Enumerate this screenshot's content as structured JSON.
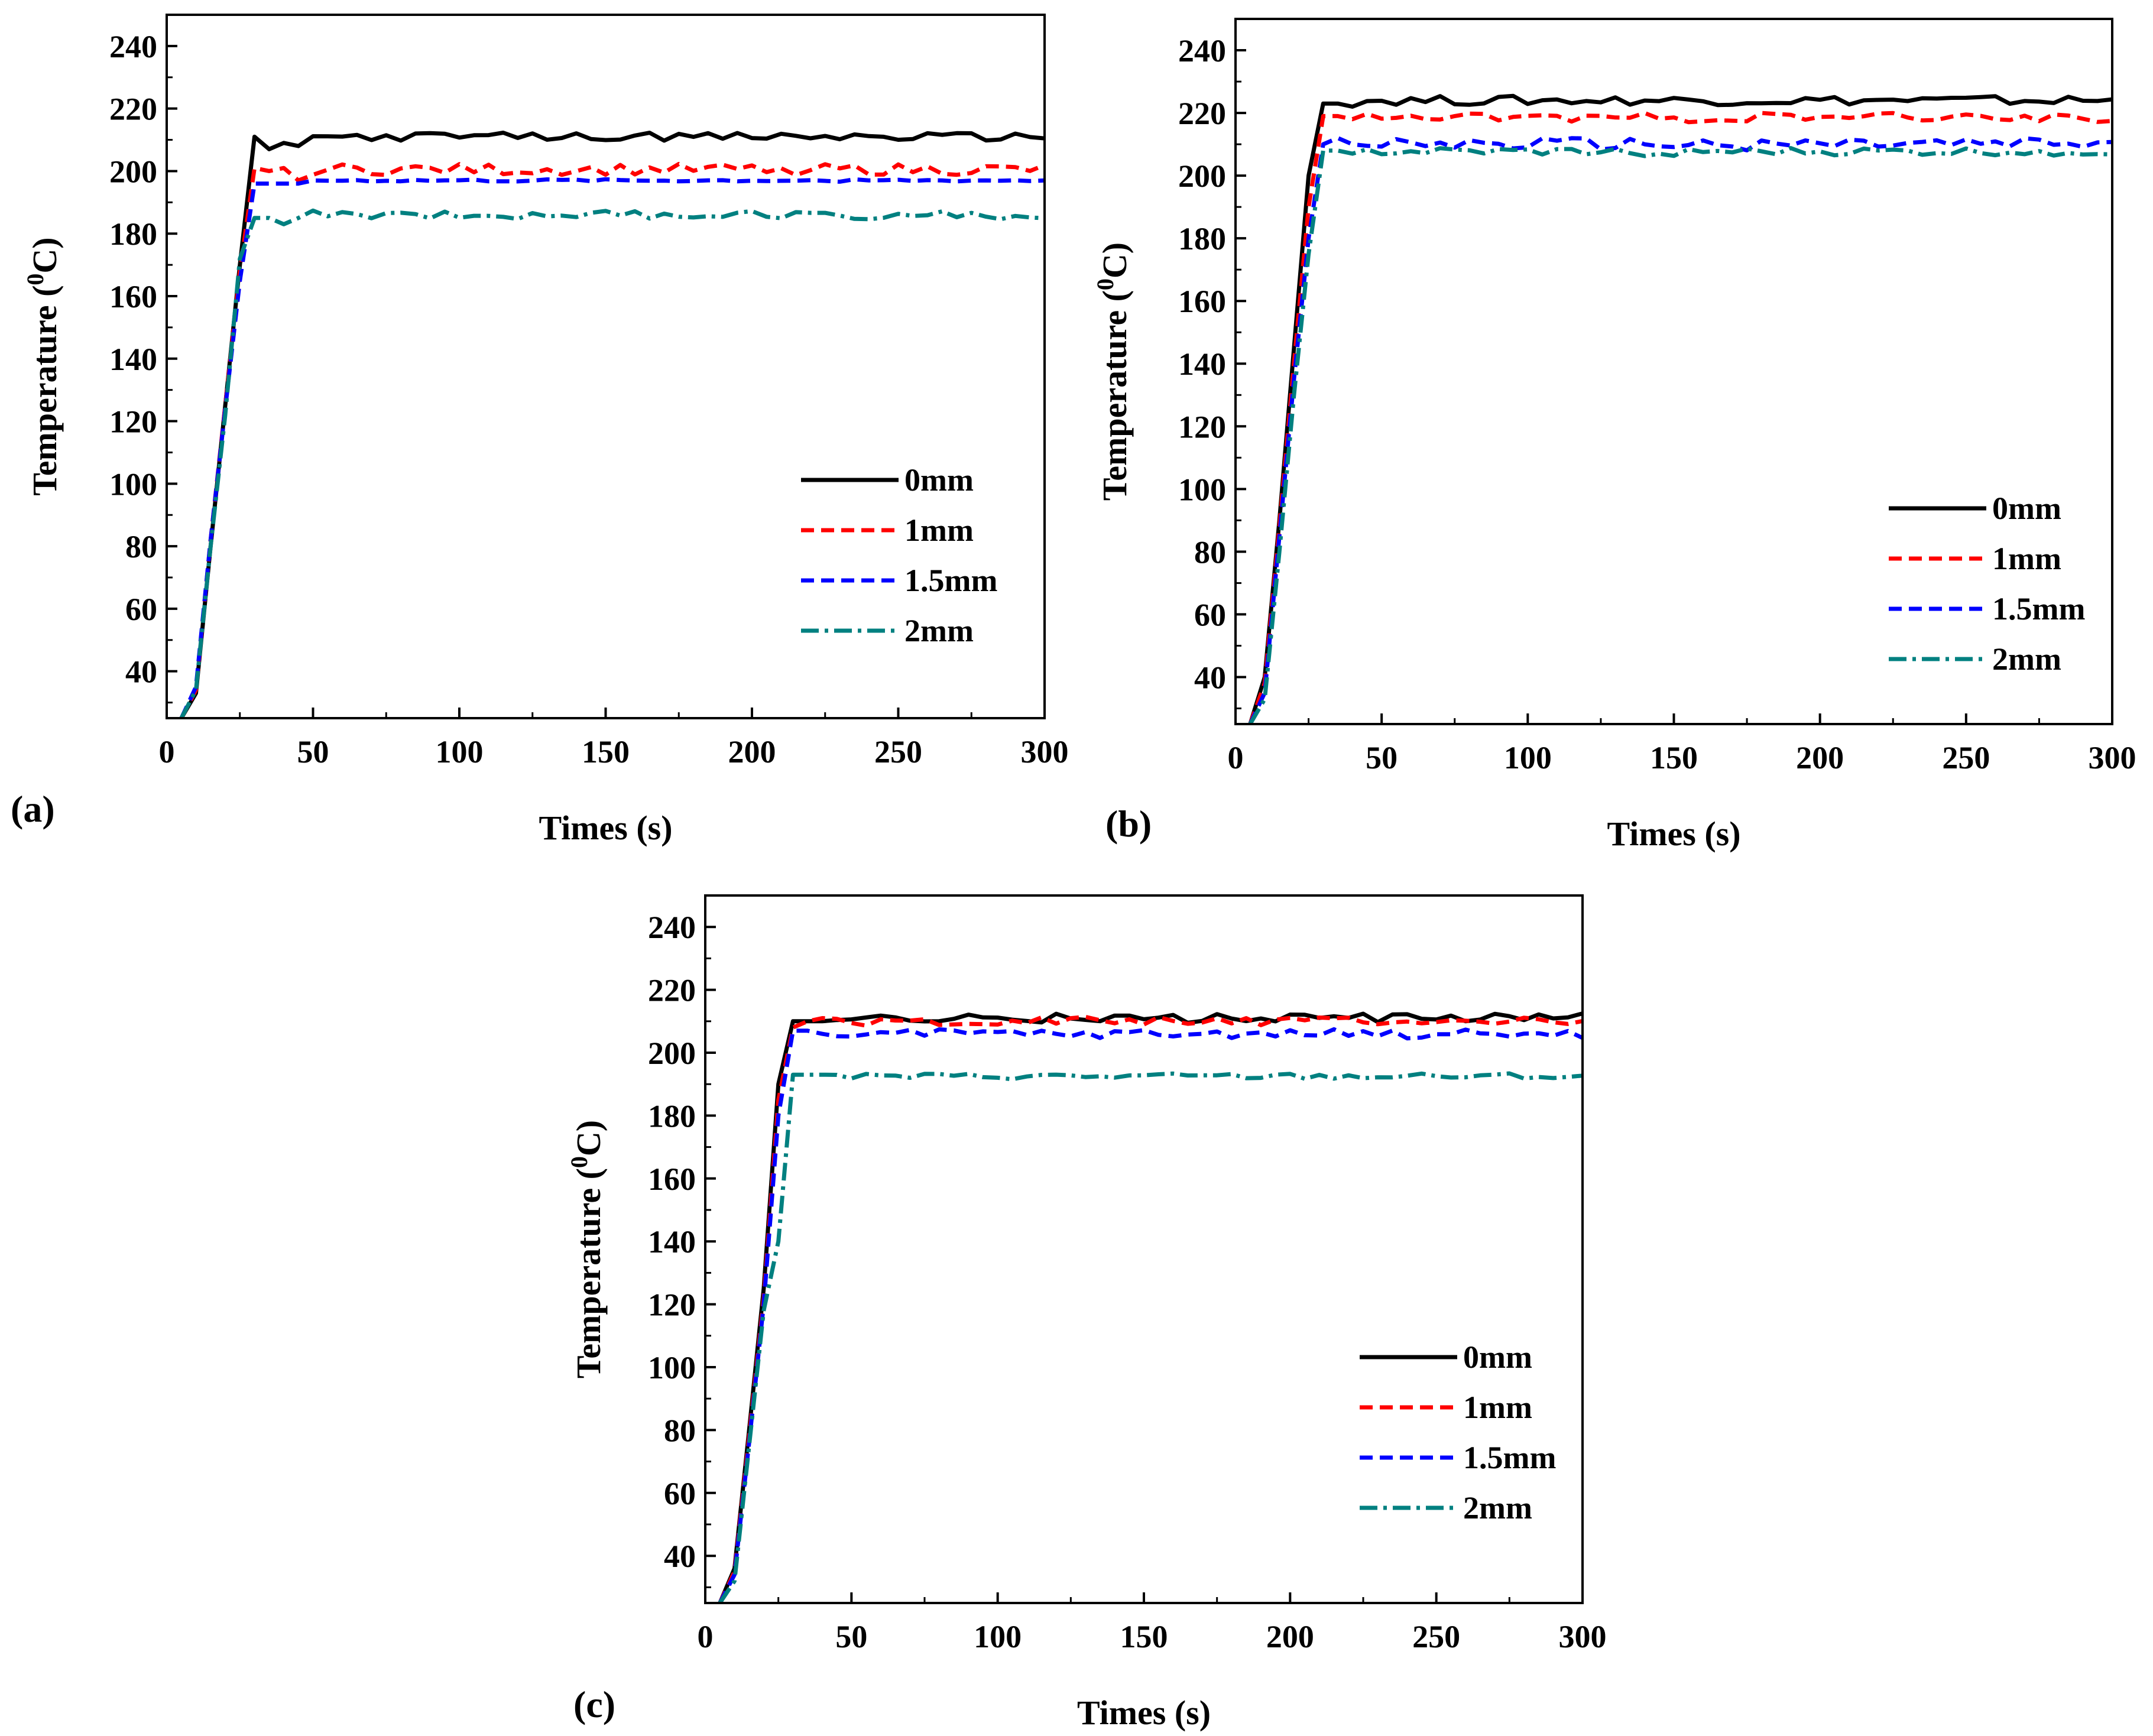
{
  "chart_data": [
    {
      "type": "line",
      "panel": "(a)",
      "xlabel": "Times (s)",
      "ylabel": "Temperature (",
      "ylabel_sup": "0",
      "ylabel_unit": "C)",
      "xlim": [
        0,
        300
      ],
      "ylim": [
        25,
        250
      ],
      "xticks": [
        "0",
        "50",
        "100",
        "150",
        "200",
        "250",
        "300"
      ],
      "yticks": [
        "40",
        "60",
        "80",
        "100",
        "120",
        "140",
        "160",
        "180",
        "200",
        "220",
        "240"
      ],
      "legend_position": "right",
      "series": [
        {
          "name": "0mm",
          "color": "#000000",
          "style": "solid",
          "base": 211,
          "amp": 1.3,
          "ramp": [
            [
              5,
              25
            ],
            [
              10,
              33
            ],
            [
              15,
              80
            ],
            [
              20,
              125
            ],
            [
              25,
              170
            ],
            [
              30,
              211
            ],
            [
              35,
              207
            ],
            [
              40,
              209
            ],
            [
              45,
              208
            ]
          ]
        },
        {
          "name": "1mm",
          "color": "#ff0000",
          "style": "dash",
          "base": 200.5,
          "amp": 1.8,
          "ramp": [
            [
              5,
              25
            ],
            [
              10,
              34
            ],
            [
              15,
              82
            ],
            [
              20,
              125
            ],
            [
              25,
              168
            ],
            [
              30,
              201
            ],
            [
              35,
              200
            ],
            [
              40,
              201
            ],
            [
              45,
              197
            ]
          ]
        },
        {
          "name": "1.5mm",
          "color": "#0000ff",
          "style": "dash",
          "base": 197,
          "amp": 0.4,
          "ramp": [
            [
              5,
              25
            ],
            [
              10,
              35
            ],
            [
              15,
              82
            ],
            [
              20,
              124
            ],
            [
              25,
              165
            ],
            [
              30,
              196
            ],
            [
              35,
              196
            ],
            [
              40,
              196
            ],
            [
              45,
              196
            ]
          ]
        },
        {
          "name": "2mm",
          "color": "#008080",
          "style": "dashdot",
          "base": 186,
          "amp": 1.4,
          "ramp": [
            [
              5,
              25
            ],
            [
              10,
              34
            ],
            [
              15,
              80
            ],
            [
              20,
              122
            ],
            [
              25,
              172
            ],
            [
              30,
              185
            ],
            [
              35,
              185
            ],
            [
              40,
              183
            ],
            [
              45,
              185
            ]
          ]
        }
      ]
    },
    {
      "type": "line",
      "panel": "(b)",
      "xlabel": "Times (s)",
      "ylabel": "Temperature (",
      "ylabel_sup": "0",
      "ylabel_unit": "C)",
      "xlim": [
        0,
        300
      ],
      "ylim": [
        25,
        250
      ],
      "xticks": [
        "0",
        "50",
        "100",
        "150",
        "200",
        "250",
        "300"
      ],
      "yticks": [
        "40",
        "60",
        "80",
        "100",
        "120",
        "140",
        "160",
        "180",
        "200",
        "220",
        "240"
      ],
      "legend_position": "right",
      "series": [
        {
          "name": "0mm",
          "color": "#000000",
          "style": "solid",
          "base": 224,
          "amp": 1.5,
          "ramp": [
            [
              5,
              25
            ],
            [
              10,
              40
            ],
            [
              15,
              90
            ],
            [
              20,
              145
            ],
            [
              25,
              200
            ],
            [
              30,
              223
            ],
            [
              35,
              223
            ],
            [
              40,
              222
            ]
          ]
        },
        {
          "name": "1mm",
          "color": "#ff0000",
          "style": "dash",
          "base": 218.5,
          "amp": 1.5,
          "ramp": [
            [
              5,
              25
            ],
            [
              10,
              38
            ],
            [
              15,
              88
            ],
            [
              20,
              140
            ],
            [
              25,
              190
            ],
            [
              30,
              219
            ],
            [
              35,
              219
            ],
            [
              40,
              218
            ]
          ]
        },
        {
          "name": "1.5mm",
          "color": "#0000ff",
          "style": "dash",
          "base": 210,
          "amp": 2.0,
          "ramp": [
            [
              5,
              25
            ],
            [
              10,
              35
            ],
            [
              15,
              85
            ],
            [
              20,
              135
            ],
            [
              25,
              180
            ],
            [
              30,
              210
            ],
            [
              35,
              212
            ],
            [
              40,
              210
            ]
          ]
        },
        {
          "name": "2mm",
          "color": "#008080",
          "style": "dashdot",
          "base": 207.5,
          "amp": 1.3,
          "ramp": [
            [
              5,
              25
            ],
            [
              10,
              33
            ],
            [
              15,
              80
            ],
            [
              20,
              130
            ],
            [
              25,
              175
            ],
            [
              30,
              208
            ],
            [
              35,
              208
            ],
            [
              40,
              207
            ]
          ]
        }
      ]
    },
    {
      "type": "line",
      "panel": "(c)",
      "xlabel": "Times (s)",
      "ylabel": "Temperature (",
      "ylabel_sup": "0",
      "ylabel_unit": "C)",
      "xlim": [
        0,
        300
      ],
      "ylim": [
        25,
        250
      ],
      "xticks": [
        "0",
        "50",
        "100",
        "150",
        "200",
        "250",
        "300"
      ],
      "yticks": [
        "40",
        "60",
        "80",
        "100",
        "120",
        "140",
        "160",
        "180",
        "200",
        "220",
        "240"
      ],
      "legend_position": "right",
      "series": [
        {
          "name": "0mm",
          "color": "#000000",
          "style": "solid",
          "base": 211,
          "amp": 1.5,
          "ramp": [
            [
              5,
              25
            ],
            [
              10,
              36
            ],
            [
              15,
              80
            ],
            [
              20,
              125
            ],
            [
              25,
              190
            ],
            [
              30,
              210
            ],
            [
              35,
              210
            ],
            [
              40,
              210
            ]
          ]
        },
        {
          "name": "1mm",
          "color": "#ff0000",
          "style": "dash",
          "base": 210,
          "amp": 1.4,
          "ramp": [
            [
              5,
              25
            ],
            [
              10,
              35
            ],
            [
              15,
              78
            ],
            [
              20,
              122
            ],
            [
              25,
              185
            ],
            [
              30,
              208
            ],
            [
              35,
              210
            ],
            [
              40,
              211
            ]
          ]
        },
        {
          "name": "1.5mm",
          "color": "#0000ff",
          "style": "dash",
          "base": 206,
          "amp": 1.5,
          "ramp": [
            [
              5,
              25
            ],
            [
              10,
              34
            ],
            [
              15,
              76
            ],
            [
              20,
              120
            ],
            [
              25,
              180
            ],
            [
              30,
              207
            ],
            [
              35,
              207
            ],
            [
              40,
              206
            ]
          ]
        },
        {
          "name": "2mm",
          "color": "#008080",
          "style": "dashdot",
          "base": 192.5,
          "amp": 1.0,
          "ramp": [
            [
              5,
              25
            ],
            [
              10,
              32
            ],
            [
              15,
              75
            ],
            [
              20,
              118
            ],
            [
              25,
              140
            ],
            [
              30,
              193
            ],
            [
              35,
              193
            ],
            [
              40,
              193
            ]
          ]
        }
      ]
    }
  ]
}
